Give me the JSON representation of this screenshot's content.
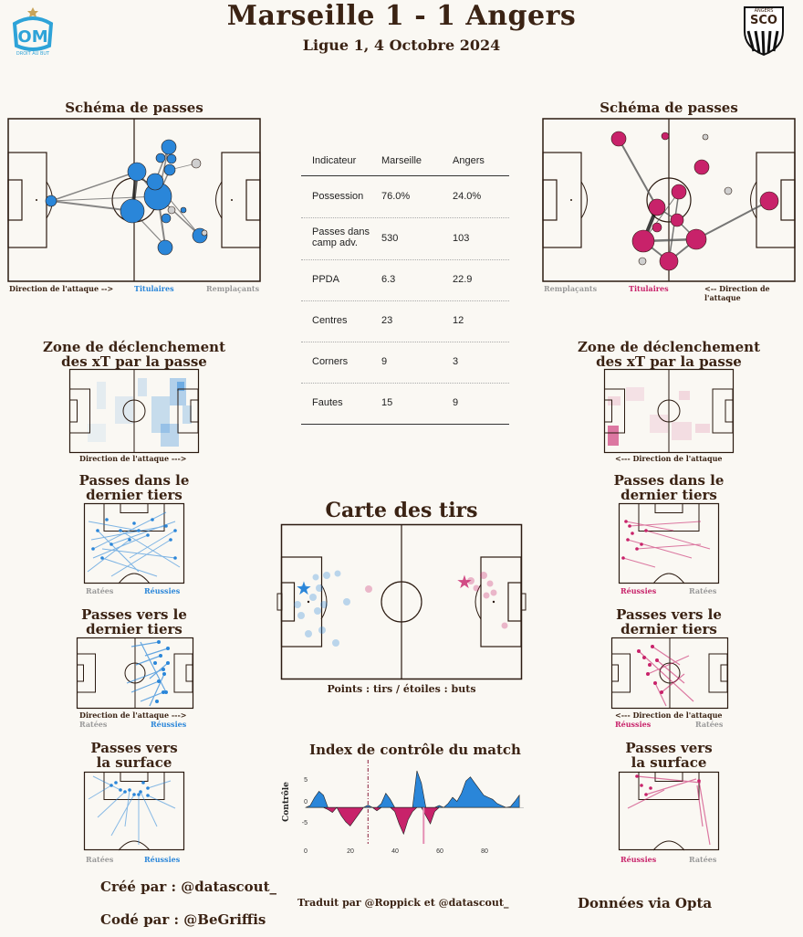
{
  "header": {
    "title": "Marseille 1 - 1 Angers",
    "subtitle": "Ligue 1, 4 Octobre 2024",
    "home_logo_text": "DROIT AU BUT",
    "away_logo_text": "SCO",
    "away_logo_top": "ANGERS"
  },
  "colors": {
    "home": "#2a86d9",
    "away": "#c8226a",
    "text": "#3b2314"
  },
  "left": {
    "pass_network_title": "Schéma de passes",
    "dir": "Direction de l'attaque -->",
    "titulaires": "Titulaires",
    "remplacants": "Remplaçants",
    "xt_title_1": "Zone de déclenchement",
    "xt_title_2": "des xT par la passe",
    "xt_dir": "Direction de l'attaque --->",
    "final_third_title_1": "Passes dans le",
    "final_third_title_2": "dernier tiers",
    "ratees": "Ratées",
    "reussies": "Réussies",
    "into_third_title_1": "Passes vers le",
    "into_third_title_2": "dernier tiers",
    "into_dir": "Direction de l'attaque --->",
    "box_title_1": "Passes vers",
    "box_title_2": "la surface"
  },
  "right": {
    "pass_network_title": "Schéma de passes",
    "dir": "<-- Direction de l'attaque",
    "titulaires": "Titulaires",
    "remplacants": "Remplaçants",
    "xt_title_1": "Zone de déclenchement",
    "xt_title_2": "des xT par la passe",
    "xt_dir": "<--- Direction de l'attaque",
    "final_third_title_1": "Passes dans le",
    "final_third_title_2": "dernier tiers",
    "ratees": "Ratées",
    "reussies": "Réussies",
    "into_third_title_1": "Passes vers le",
    "into_third_title_2": "dernier tiers",
    "into_dir": "<--- Direction de l'attaque",
    "box_title_1": "Passes vers",
    "box_title_2": "la surface"
  },
  "stats": {
    "headers": [
      "Indicateur",
      "Marseille",
      "Angers"
    ],
    "rows": [
      {
        "label": "Possession",
        "home": "76.0%",
        "away": "24.0%"
      },
      {
        "label": "Passes dans camp adv.",
        "home": "530",
        "away": "103"
      },
      {
        "label": "PPDA",
        "home": "6.3",
        "away": "22.9"
      },
      {
        "label": "Centres",
        "home": "23",
        "away": "12"
      },
      {
        "label": "Corners",
        "home": "9",
        "away": "3"
      },
      {
        "label": "Fautes",
        "home": "15",
        "away": "9"
      }
    ]
  },
  "shots": {
    "title": "Carte des tirs",
    "caption": "Points : tirs / étoiles : buts"
  },
  "control": {
    "title": "Index de contrôle du match",
    "ylabel": "Contrôle",
    "yticks": [
      "5",
      "0",
      "-5"
    ],
    "xticks": [
      "0",
      "20",
      "40",
      "60",
      "80"
    ]
  },
  "chart_data": {
    "type": "area",
    "title": "Index de contrôle du match",
    "ylabel": "Contrôle",
    "xlim": [
      0,
      98
    ],
    "ylim": [
      -8,
      9
    ],
    "x": [
      0,
      2,
      4,
      6,
      8,
      10,
      12,
      14,
      16,
      18,
      20,
      22,
      24,
      26,
      28,
      30,
      32,
      34,
      36,
      38,
      40,
      42,
      44,
      46,
      48,
      50,
      52,
      54,
      56,
      58,
      60,
      62,
      64,
      66,
      68,
      70,
      72,
      74,
      76,
      78,
      80,
      82,
      84,
      86,
      88,
      90,
      92,
      94,
      96
    ],
    "series": [
      {
        "values": [
          0,
          0.5,
          2.5,
          4,
          3,
          -0.5,
          -1.2,
          0,
          -2,
          -3.5,
          -4.5,
          -3,
          -1.5,
          0,
          0.6,
          0,
          -0.8,
          1,
          3.5,
          2,
          -1,
          -4,
          -6.5,
          -3,
          -1,
          9,
          6,
          -2,
          -4,
          -1,
          0.5,
          0,
          1,
          2.5,
          1.5,
          3.5,
          6.5,
          7.5,
          6,
          4.5,
          3,
          2.5,
          2,
          1,
          0.5,
          0,
          0.2,
          1.5,
          3
        ]
      }
    ],
    "goal_markers": [
      {
        "x": 28,
        "team": "Angers"
      },
      {
        "x": 53,
        "team": "Marseille"
      }
    ]
  },
  "footer": {
    "cree": "Créé par : @datascout_",
    "code": "Codé par : @BeGriffis",
    "traduit": "Traduit par @Roppick et @datascout_",
    "donnees": "Données via Opta"
  }
}
